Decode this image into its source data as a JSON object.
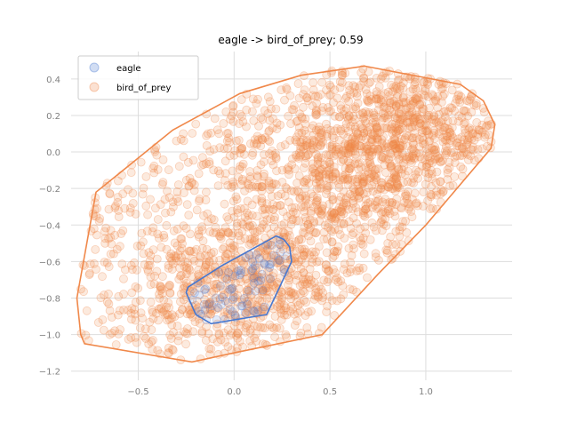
{
  "chart_data": {
    "type": "scatter",
    "title": "eagle -> bird_of_prey; 0.59",
    "xlabel": "",
    "ylabel": "",
    "xlim": [
      -0.85,
      1.45
    ],
    "ylim": [
      -1.25,
      0.55
    ],
    "x_ticks": [
      -0.5,
      0.0,
      0.5,
      1.0
    ],
    "x_tick_labels": [
      "−0.5",
      "0.0",
      "0.5",
      "1.0"
    ],
    "y_ticks": [
      -1.2,
      -1.0,
      -0.8,
      -0.6,
      -0.4,
      -0.2,
      0.0,
      0.2,
      0.4
    ],
    "y_tick_labels": [
      "−1.2",
      "−1.0",
      "−0.8",
      "−0.6",
      "−0.4",
      "−0.2",
      "0.0",
      "0.2",
      "0.4"
    ],
    "grid": true,
    "legend_position": "top-left",
    "series": [
      {
        "name": "eagle",
        "color": "#4878cf",
        "point_count": 80,
        "hull": [
          [
            0.22,
            -0.46
          ],
          [
            0.26,
            -0.48
          ],
          [
            0.29,
            -0.52
          ],
          [
            0.3,
            -0.6
          ],
          [
            0.17,
            -0.89
          ],
          [
            -0.12,
            -0.94
          ],
          [
            -0.2,
            -0.89
          ],
          [
            -0.25,
            -0.77
          ],
          [
            -0.24,
            -0.74
          ],
          [
            -0.06,
            -0.62
          ]
        ]
      },
      {
        "name": "bird_of_prey",
        "color": "#f0884a",
        "point_count": 2400,
        "hull": [
          [
            0.68,
            0.47
          ],
          [
            1.18,
            0.37
          ],
          [
            1.3,
            0.28
          ],
          [
            1.36,
            0.15
          ],
          [
            1.34,
            0.02
          ],
          [
            1.0,
            -0.4
          ],
          [
            0.75,
            -0.67
          ],
          [
            0.46,
            -1.0
          ],
          [
            0.0,
            -1.1
          ],
          [
            -0.22,
            -1.15
          ],
          [
            -0.78,
            -1.05
          ],
          [
            -0.8,
            -1.0
          ],
          [
            -0.82,
            -0.8
          ],
          [
            -0.72,
            -0.22
          ],
          [
            -0.32,
            0.12
          ],
          [
            0.03,
            0.32
          ],
          [
            0.35,
            0.42
          ]
        ]
      }
    ]
  }
}
